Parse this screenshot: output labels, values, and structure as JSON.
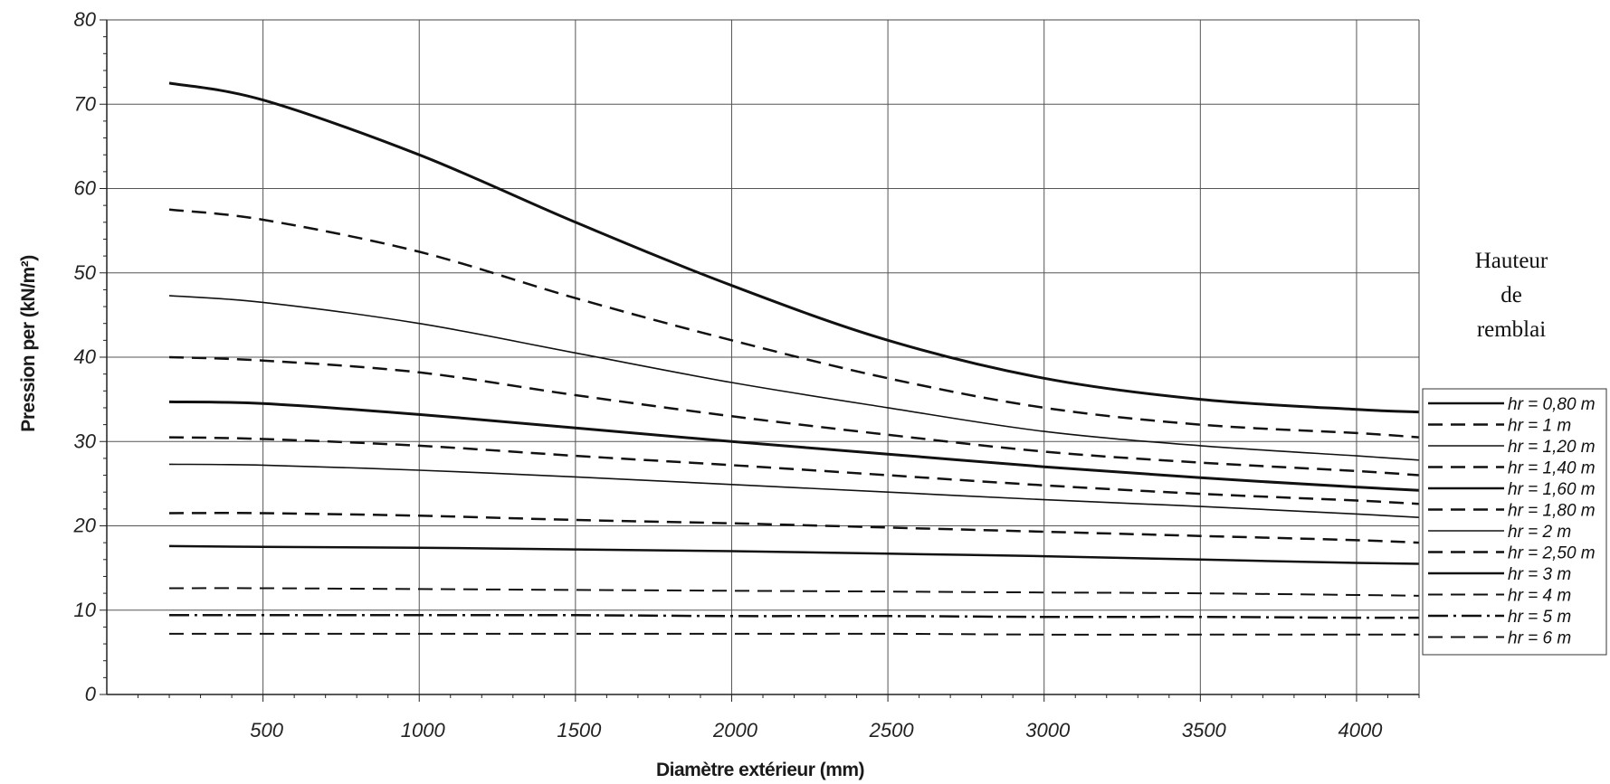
{
  "chart_data": {
    "type": "line",
    "title": "",
    "xlabel": "Diamètre extérieur (mm)",
    "ylabel": "Pression per  (kN/m²)",
    "xlim": [
      0,
      4200
    ],
    "ylim": [
      0,
      80
    ],
    "xticks": [
      500,
      1000,
      1500,
      2000,
      2500,
      3000,
      3500,
      4000
    ],
    "xtick_labels": [
      "500",
      "1000",
      "1500",
      "2000",
      "2500",
      "3000",
      "3500",
      "4000"
    ],
    "yticks": [
      0,
      10,
      20,
      30,
      40,
      50,
      60,
      70,
      80
    ],
    "ytick_labels": [
      "0",
      "10",
      "20",
      "30",
      "40",
      "50",
      "60",
      "70",
      "80"
    ],
    "grid": true,
    "legend": {
      "title_lines": [
        "Hauteur",
        "de",
        "remblai"
      ],
      "position": "right"
    },
    "x": [
      200,
      500,
      1000,
      1500,
      2000,
      2500,
      3000,
      3500,
      4000,
      4200
    ],
    "series": [
      {
        "name": "hr = 0,80 m",
        "style": "solid",
        "width": 3,
        "values": [
          72.5,
          70.5,
          64.0,
          56.0,
          48.5,
          42.0,
          37.5,
          35.0,
          33.8,
          33.5
        ]
      },
      {
        "name": "hr = 1 m",
        "style": "dashed",
        "width": 2.5,
        "values": [
          57.5,
          56.3,
          52.5,
          47.0,
          42.0,
          37.5,
          34.0,
          32.0,
          31.0,
          30.5
        ]
      },
      {
        "name": "hr = 1,20 m",
        "style": "solid",
        "width": 1.6,
        "values": [
          47.3,
          46.5,
          44.0,
          40.5,
          37.0,
          34.0,
          31.2,
          29.5,
          28.3,
          27.8
        ]
      },
      {
        "name": "hr = 1,40 m",
        "style": "dashed",
        "width": 2.5,
        "values": [
          40.0,
          39.6,
          38.2,
          35.5,
          33.0,
          30.8,
          28.8,
          27.5,
          26.5,
          26.0
        ]
      },
      {
        "name": "hr = 1,60 m",
        "style": "solid",
        "width": 3,
        "values": [
          34.7,
          34.5,
          33.2,
          31.6,
          30.0,
          28.5,
          27.0,
          25.7,
          24.6,
          24.2
        ]
      },
      {
        "name": "hr = 1,80 m",
        "style": "dashed",
        "width": 2.5,
        "values": [
          30.5,
          30.3,
          29.5,
          28.3,
          27.2,
          26.0,
          24.8,
          23.8,
          23.0,
          22.6
        ]
      },
      {
        "name": "hr = 2 m",
        "style": "solid",
        "width": 1.6,
        "values": [
          27.3,
          27.2,
          26.6,
          25.8,
          24.9,
          24.0,
          23.1,
          22.3,
          21.4,
          21.0
        ]
      },
      {
        "name": "hr = 2,50 m",
        "style": "dashed",
        "width": 2.5,
        "values": [
          21.5,
          21.5,
          21.2,
          20.7,
          20.3,
          19.8,
          19.3,
          18.8,
          18.3,
          18.0
        ]
      },
      {
        "name": "hr = 3 m",
        "style": "solid",
        "width": 2.5,
        "values": [
          17.6,
          17.5,
          17.4,
          17.2,
          17.0,
          16.7,
          16.4,
          16.0,
          15.6,
          15.5
        ]
      },
      {
        "name": "hr = 4 m",
        "style": "dashed",
        "width": 2,
        "values": [
          12.6,
          12.6,
          12.5,
          12.4,
          12.3,
          12.2,
          12.1,
          12.0,
          11.8,
          11.7
        ]
      },
      {
        "name": "hr = 5 m",
        "style": "dashdot",
        "width": 2.5,
        "values": [
          9.4,
          9.4,
          9.4,
          9.4,
          9.3,
          9.3,
          9.2,
          9.2,
          9.1,
          9.1
        ]
      },
      {
        "name": "hr = 6 m",
        "style": "dashed",
        "width": 2,
        "values": [
          7.2,
          7.2,
          7.2,
          7.2,
          7.2,
          7.2,
          7.1,
          7.1,
          7.1,
          7.1
        ]
      }
    ]
  }
}
